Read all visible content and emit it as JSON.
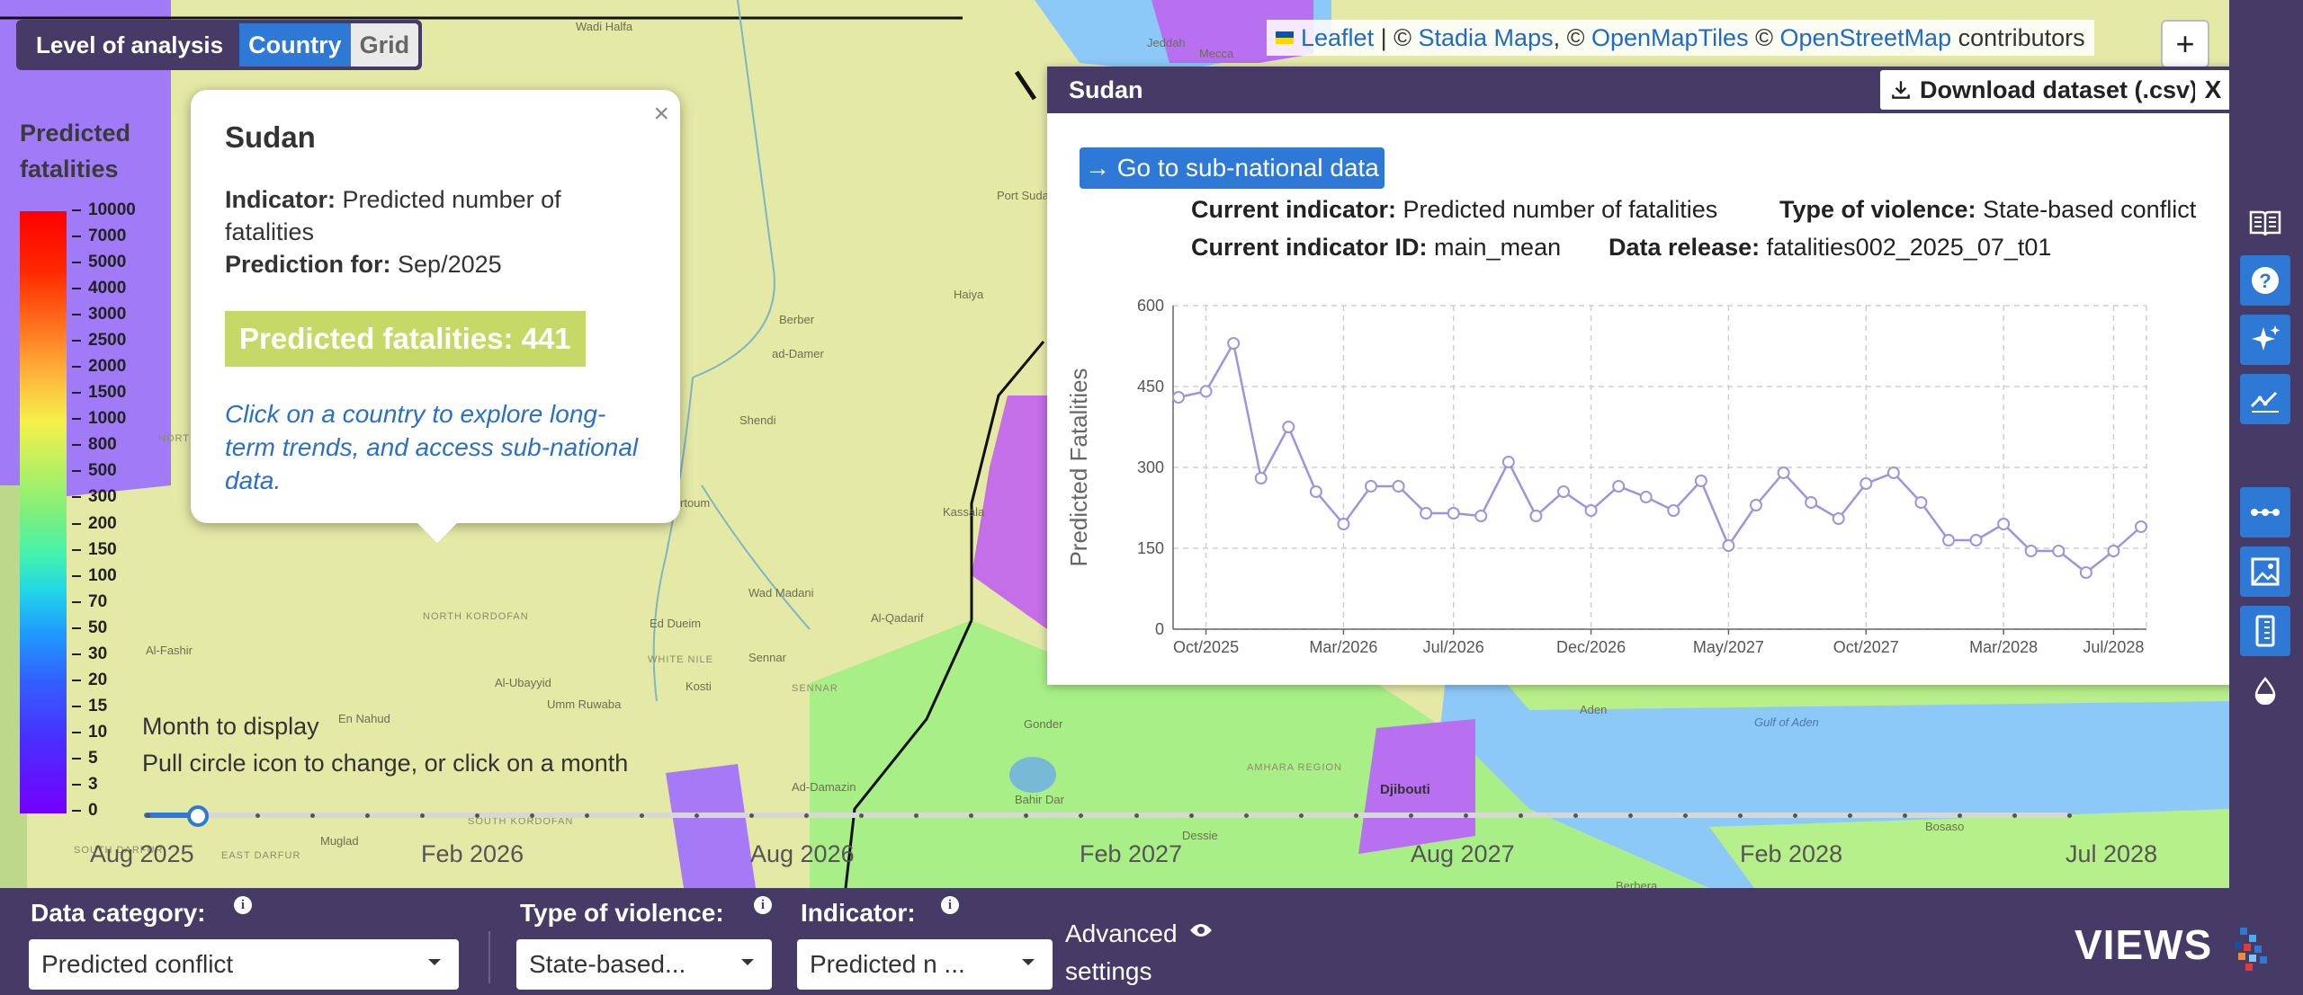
{
  "level": {
    "label": "Level of analysis",
    "country": "Country",
    "grid": "Grid"
  },
  "legend": {
    "title_line1": "Predicted",
    "title_line2": "fatalities",
    "ticks": [
      "10000",
      "7000",
      "5000",
      "4000",
      "3000",
      "2500",
      "2000",
      "1500",
      "1000",
      "800",
      "500",
      "300",
      "200",
      "150",
      "100",
      "70",
      "50",
      "30",
      "20",
      "15",
      "10",
      "5",
      "3",
      "0"
    ]
  },
  "map_labels": {
    "wadi_halfa": "Wadi Halfa",
    "jeddah": "Jeddah",
    "mecca": "Mecca",
    "port_sudan": "Port Sudan",
    "haiya": "Haiya",
    "berber": "Berber",
    "ad_damer": "ad-Damer",
    "shendi": "Shendi",
    "khartoum": "rtoum",
    "kassala": "Kassala",
    "wad_madani": "Wad Madani",
    "al_qadarif": "Al-Qadarif",
    "ed_dueim": "Ed Dueim",
    "sennar": "Sennar",
    "kosti": "Kosti",
    "al_fashir": "Al-Fashir",
    "al_ubayyid": "Al-Ubayyid",
    "umm_ruwaba": "Umm Ruwaba",
    "en_nahud": "En Nahud",
    "north_kordofan": "North Kordofan",
    "white_nile": "White Nile",
    "sennar_region": "Sennar",
    "north": "North",
    "gonder": "Gonder",
    "bahir_dar": "Bahir Dar",
    "amhara": "Amhara Region",
    "ad_damazin": "Ad-Damazin",
    "dessie": "Dessie",
    "djibouti": "Djibouti",
    "aden": "Aden",
    "gulf_of_aden": "Gulf of Aden",
    "mugiad": "Muglad",
    "east_darfur": "East Darfur",
    "south_darfur": "South Darfur",
    "south_kordofan": "South Kordofan",
    "berbera": "Berbera",
    "bosaso": "Bosaso"
  },
  "popup": {
    "country": "Sudan",
    "close": "×",
    "indicator_label": "Indicator:",
    "indicator_value": "Predicted number of fatalities",
    "prediction_label": "Prediction for:",
    "prediction_value": "Sep/2025",
    "badge": "Predicted fatalities: 441",
    "hint": "Click on a country to explore long-term trends, and access sub-national data."
  },
  "attribution": {
    "leaflet": "Leaflet",
    "sep1": " | © ",
    "stadia": "Stadia Maps",
    "sep2": ", © ",
    "omt": "OpenMapTiles",
    "sep3": " © ",
    "osm": "OpenStreetMap",
    "tail": " contributors"
  },
  "zoom_plus": "+",
  "panel": {
    "title": "Sudan",
    "download": "Download dataset (.csv)",
    "close": "X",
    "subnational": "→ Go to sub-national data",
    "current_indicator_label": "Current indicator:",
    "current_indicator_value": "Predicted number of fatalities",
    "violence_label": "Type of violence:",
    "violence_value": "State-based conflict",
    "indicator_id_label": "Current indicator ID:",
    "indicator_id_value": "main_mean",
    "release_label": "Data release:",
    "release_value": "fatalities002_2025_07_t01"
  },
  "chart_data": {
    "type": "line",
    "ylabel": "Predicted Fatalities",
    "ylim": [
      0,
      600
    ],
    "yticks": [
      0,
      150,
      300,
      450,
      600
    ],
    "x_tick_labels": [
      "Oct/2025",
      "Mar/2026",
      "Jul/2026",
      "Dec/2026",
      "May/2027",
      "Oct/2027",
      "Mar/2028",
      "Jul/2028"
    ],
    "x_tick_index": [
      1,
      6,
      10,
      15,
      20,
      25,
      30,
      34
    ],
    "x": [
      "Aug/2025",
      "Sep/2025",
      "Oct/2025",
      "Nov/2025",
      "Dec/2025",
      "Jan/2026",
      "Feb/2026",
      "Mar/2026",
      "Apr/2026",
      "May/2026",
      "Jun/2026",
      "Jul/2026",
      "Aug/2026",
      "Sep/2026",
      "Oct/2026",
      "Nov/2026",
      "Dec/2026",
      "Jan/2027",
      "Feb/2027",
      "Mar/2027",
      "Apr/2027",
      "May/2027",
      "Jun/2027",
      "Jul/2027",
      "Aug/2027",
      "Sep/2027",
      "Oct/2027",
      "Nov/2027",
      "Dec/2027",
      "Jan/2028",
      "Feb/2028",
      "Mar/2028",
      "Apr/2028",
      "May/2028",
      "Jun/2028",
      "Jul/2028"
    ],
    "values": [
      430,
      441,
      530,
      280,
      375,
      255,
      195,
      265,
      265,
      215,
      215,
      210,
      310,
      210,
      255,
      220,
      265,
      245,
      220,
      275,
      155,
      230,
      290,
      235,
      205,
      270,
      290,
      235,
      165,
      165,
      195,
      145,
      145,
      105,
      145,
      190
    ],
    "color": "#9f93e0",
    "grid": true
  },
  "sidebar": {
    "icons": [
      "book-icon",
      "help-icon",
      "sparkle-icon",
      "trend-icon",
      "dots-icon",
      "image-icon",
      "ruler-icon",
      "drop-icon"
    ]
  },
  "month": {
    "title": "Month to display",
    "hint": "Pull circle icon to change, or click on a month",
    "labels": [
      "Aug 2025",
      "Feb 2026",
      "Aug 2026",
      "Feb 2027",
      "Aug 2027",
      "Feb 2028",
      "Jul 2028"
    ],
    "selected": "Aug 2025",
    "count": 36
  },
  "bottom": {
    "data_category_label": "Data category:",
    "data_category_value": "Predicted conflict",
    "violence_label": "Type of violence:",
    "violence_value": "State-based...",
    "indicator_label": "Indicator:",
    "indicator_value": "Predicted n ...",
    "advanced_line1": "Advanced",
    "advanced_line2": "settings",
    "logo": "VIEWS",
    "info_glyph": "i"
  }
}
